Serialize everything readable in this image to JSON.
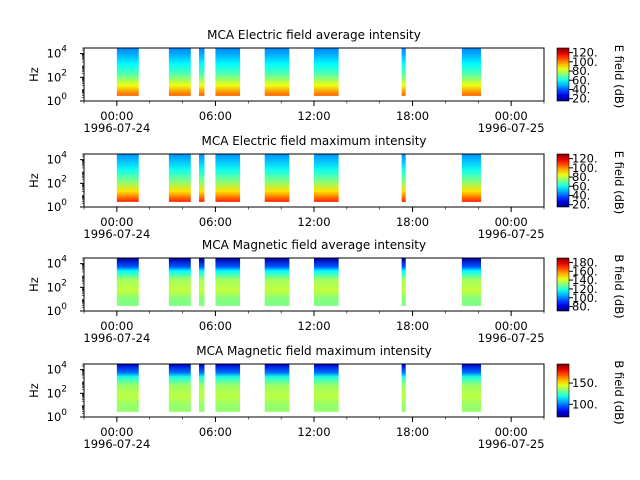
{
  "chart_data": [
    {
      "type": "heatmap",
      "title": "MCA  Electric field average intensity",
      "ylabel": "Hz",
      "ylim": [
        1,
        30000
      ],
      "yscale": "log",
      "yticks": [
        {
          "m": "10",
          "e": "0"
        },
        {
          "m": "10",
          "e": "2"
        },
        {
          "m": "10",
          "e": "4"
        }
      ],
      "xlim": [
        "1996-07-23T22:00",
        "1996-07-25T02:00"
      ],
      "xticks": [
        {
          "t": "1996-07-24T00:00",
          "label": "00:00",
          "date": "1996-07-24"
        },
        {
          "t": "1996-07-24T06:00",
          "label": "06:00",
          "date": ""
        },
        {
          "t": "1996-07-24T12:00",
          "label": "12:00",
          "date": ""
        },
        {
          "t": "1996-07-24T18:00",
          "label": "18:00",
          "date": ""
        },
        {
          "t": "1996-07-25T00:00",
          "label": "00:00",
          "date": "1996-07-25"
        }
      ],
      "colorbar": {
        "label": "E field (dB)",
        "range": [
          15,
          130
        ],
        "ticks": [
          "20.",
          "40.",
          "60.",
          "80.",
          "100.",
          "120."
        ]
      },
      "data_intervals": [
        [
          "1996-07-24T00:00",
          "1996-07-24T01:20"
        ],
        [
          "1996-07-24T03:10",
          "1996-07-24T04:30"
        ],
        [
          "1996-07-24T05:00",
          "1996-07-24T05:20"
        ],
        [
          "1996-07-24T06:00",
          "1996-07-24T07:30"
        ],
        [
          "1996-07-24T09:00",
          "1996-07-24T10:30"
        ],
        [
          "1996-07-24T12:00",
          "1996-07-24T13:30"
        ],
        [
          "1996-07-24T17:20",
          "1996-07-24T17:35"
        ],
        [
          "1996-07-24T21:00",
          "1996-07-24T22:10"
        ]
      ],
      "profile_db": [
        [
          1,
          105
        ],
        [
          10,
          85
        ],
        [
          100,
          68
        ],
        [
          1000,
          58
        ],
        [
          10000,
          48
        ],
        [
          30000,
          45
        ]
      ]
    },
    {
      "type": "heatmap",
      "title": "MCA  Electric field maximum intensity",
      "ylabel": "Hz",
      "ylim": [
        1,
        30000
      ],
      "yscale": "log",
      "yticks": [
        {
          "m": "10",
          "e": "0"
        },
        {
          "m": "10",
          "e": "2"
        },
        {
          "m": "10",
          "e": "4"
        }
      ],
      "xlim": [
        "1996-07-23T22:00",
        "1996-07-25T02:00"
      ],
      "xticks": [
        {
          "t": "1996-07-24T00:00",
          "label": "00:00",
          "date": "1996-07-24"
        },
        {
          "t": "1996-07-24T06:00",
          "label": "06:00",
          "date": ""
        },
        {
          "t": "1996-07-24T12:00",
          "label": "12:00",
          "date": ""
        },
        {
          "t": "1996-07-24T18:00",
          "label": "18:00",
          "date": ""
        },
        {
          "t": "1996-07-25T00:00",
          "label": "00:00",
          "date": "1996-07-25"
        }
      ],
      "colorbar": {
        "label": "E field (dB)",
        "range": [
          15,
          130
        ],
        "ticks": [
          "20.",
          "40.",
          "60.",
          "80.",
          "100.",
          "120."
        ]
      },
      "data_intervals": [
        [
          "1996-07-24T00:00",
          "1996-07-24T01:20"
        ],
        [
          "1996-07-24T03:10",
          "1996-07-24T04:30"
        ],
        [
          "1996-07-24T05:00",
          "1996-07-24T05:20"
        ],
        [
          "1996-07-24T06:00",
          "1996-07-24T07:30"
        ],
        [
          "1996-07-24T09:00",
          "1996-07-24T10:30"
        ],
        [
          "1996-07-24T12:00",
          "1996-07-24T13:30"
        ],
        [
          "1996-07-24T17:20",
          "1996-07-24T17:35"
        ],
        [
          "1996-07-24T21:00",
          "1996-07-24T22:10"
        ]
      ],
      "profile_db": [
        [
          1,
          112
        ],
        [
          10,
          90
        ],
        [
          100,
          72
        ],
        [
          1000,
          60
        ],
        [
          10000,
          50
        ],
        [
          30000,
          46
        ]
      ]
    },
    {
      "type": "heatmap",
      "title": "MCA  Magnetic field average intensity",
      "ylabel": "Hz",
      "ylim": [
        1,
        30000
      ],
      "yscale": "log",
      "yticks": [
        {
          "m": "10",
          "e": "0"
        },
        {
          "m": "10",
          "e": "2"
        },
        {
          "m": "10",
          "e": "4"
        }
      ],
      "xlim": [
        "1996-07-23T22:00",
        "1996-07-25T02:00"
      ],
      "xticks": [
        {
          "t": "1996-07-24T00:00",
          "label": "00:00",
          "date": "1996-07-24"
        },
        {
          "t": "1996-07-24T06:00",
          "label": "06:00",
          "date": ""
        },
        {
          "t": "1996-07-24T12:00",
          "label": "12:00",
          "date": ""
        },
        {
          "t": "1996-07-24T18:00",
          "label": "18:00",
          "date": ""
        },
        {
          "t": "1996-07-25T00:00",
          "label": "00:00",
          "date": "1996-07-25"
        }
      ],
      "colorbar": {
        "label": "B field (dB)",
        "range": [
          70,
          190
        ],
        "ticks": [
          "80.",
          "100.",
          "120.",
          "140.",
          "160.",
          "180."
        ]
      },
      "data_intervals": [
        [
          "1996-07-24T00:00",
          "1996-07-24T01:20"
        ],
        [
          "1996-07-24T03:10",
          "1996-07-24T04:30"
        ],
        [
          "1996-07-24T05:00",
          "1996-07-24T05:20"
        ],
        [
          "1996-07-24T06:00",
          "1996-07-24T07:30"
        ],
        [
          "1996-07-24T09:00",
          "1996-07-24T10:30"
        ],
        [
          "1996-07-24T12:00",
          "1996-07-24T13:30"
        ],
        [
          "1996-07-24T17:20",
          "1996-07-24T17:35"
        ],
        [
          "1996-07-24T21:00",
          "1996-07-24T22:10"
        ]
      ],
      "profile_db": [
        [
          4,
          130
        ],
        [
          30,
          138
        ],
        [
          300,
          134
        ],
        [
          2000,
          115
        ],
        [
          5000,
          95
        ],
        [
          30000,
          75
        ]
      ]
    },
    {
      "type": "heatmap",
      "title": "MCA  Magnetic field maximum intensity",
      "ylabel": "Hz",
      "ylim": [
        1,
        30000
      ],
      "yscale": "log",
      "yticks": [
        {
          "m": "10",
          "e": "0"
        },
        {
          "m": "10",
          "e": "2"
        },
        {
          "m": "10",
          "e": "4"
        }
      ],
      "xlim": [
        "1996-07-23T22:00",
        "1996-07-25T02:00"
      ],
      "xticks": [
        {
          "t": "1996-07-24T00:00",
          "label": "00:00",
          "date": "1996-07-24"
        },
        {
          "t": "1996-07-24T06:00",
          "label": "06:00",
          "date": ""
        },
        {
          "t": "1996-07-24T12:00",
          "label": "12:00",
          "date": ""
        },
        {
          "t": "1996-07-24T18:00",
          "label": "18:00",
          "date": ""
        },
        {
          "t": "1996-07-25T00:00",
          "label": "00:00",
          "date": "1996-07-25"
        }
      ],
      "colorbar": {
        "label": "B field (dB)",
        "range": [
          70,
          195
        ],
        "ticks": [
          "100.",
          "150."
        ]
      },
      "data_intervals": [
        [
          "1996-07-24T00:00",
          "1996-07-24T01:20"
        ],
        [
          "1996-07-24T03:10",
          "1996-07-24T04:30"
        ],
        [
          "1996-07-24T05:00",
          "1996-07-24T05:20"
        ],
        [
          "1996-07-24T06:00",
          "1996-07-24T07:30"
        ],
        [
          "1996-07-24T09:00",
          "1996-07-24T10:30"
        ],
        [
          "1996-07-24T12:00",
          "1996-07-24T13:30"
        ],
        [
          "1996-07-24T17:20",
          "1996-07-24T17:35"
        ],
        [
          "1996-07-24T21:00",
          "1996-07-24T22:10"
        ]
      ],
      "profile_db": [
        [
          4,
          135
        ],
        [
          30,
          140
        ],
        [
          300,
          136
        ],
        [
          2000,
          120
        ],
        [
          5000,
          100
        ],
        [
          30000,
          80
        ]
      ]
    }
  ]
}
